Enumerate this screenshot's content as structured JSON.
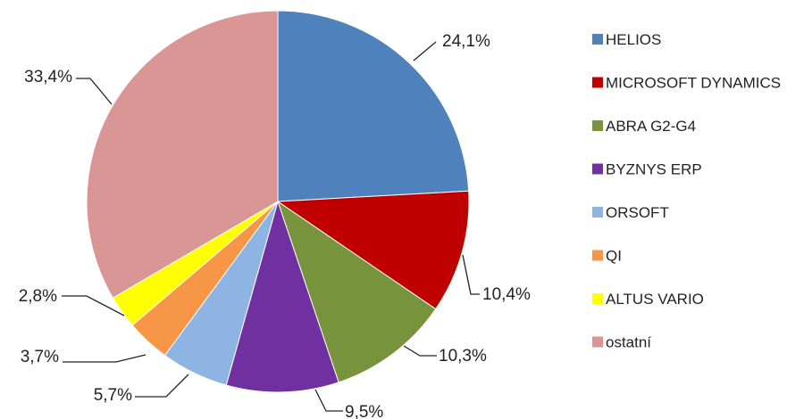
{
  "chart_data": {
    "type": "pie",
    "title": "",
    "legend_position": "right",
    "slices": [
      {
        "name": "HELIOS",
        "value": 24.1,
        "label": "24,1%",
        "color": "#4f81bd"
      },
      {
        "name": "MICROSOFT DYNAMICS",
        "value": 10.4,
        "label": "10,4%",
        "color": "#c00000"
      },
      {
        "name": "ABRA G2-G4",
        "value": 10.3,
        "label": "10,3%",
        "color": "#77933c"
      },
      {
        "name": "BYZNYS ERP",
        "value": 9.5,
        "label": "9,5%",
        "color": "#7030a0"
      },
      {
        "name": "ORSOFT",
        "value": 5.7,
        "label": "5,7%",
        "color": "#8eb4e3"
      },
      {
        "name": "QI",
        "value": 3.7,
        "label": "3,7%",
        "color": "#f79646"
      },
      {
        "name": "ALTUS VARIO",
        "value": 2.8,
        "label": "2,8%",
        "color": "#ffff00"
      },
      {
        "name": "ostatní",
        "value": 33.4,
        "label": "33,4%",
        "color": "#d99694"
      }
    ]
  }
}
